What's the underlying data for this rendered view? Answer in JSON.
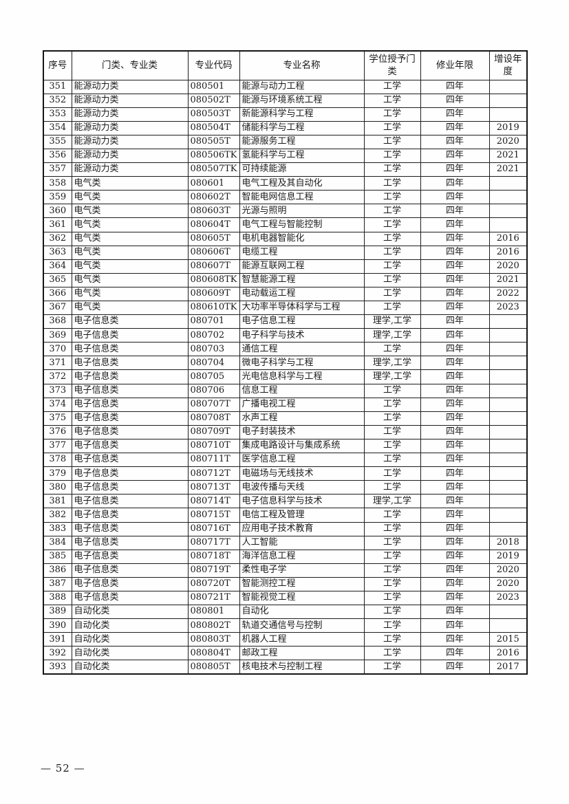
{
  "table": {
    "headers": [
      "序号",
      "门类、专业类",
      "专业代码",
      "专业名称",
      "学位授予门类",
      "修业年限",
      "增设年度"
    ],
    "rows": [
      [
        "351",
        "能源动力类",
        "080501",
        "能源与动力工程",
        "工学",
        "四年",
        ""
      ],
      [
        "352",
        "能源动力类",
        "080502T",
        "能源与环境系统工程",
        "工学",
        "四年",
        ""
      ],
      [
        "353",
        "能源动力类",
        "080503T",
        "新能源科学与工程",
        "工学",
        "四年",
        ""
      ],
      [
        "354",
        "能源动力类",
        "080504T",
        "储能科学与工程",
        "工学",
        "四年",
        "2019"
      ],
      [
        "355",
        "能源动力类",
        "080505T",
        "能源服务工程",
        "工学",
        "四年",
        "2020"
      ],
      [
        "356",
        "能源动力类",
        "080506TK",
        "氢能科学与工程",
        "工学",
        "四年",
        "2021"
      ],
      [
        "357",
        "能源动力类",
        "080507TK",
        "可持续能源",
        "工学",
        "四年",
        "2021"
      ],
      [
        "358",
        "电气类",
        "080601",
        "电气工程及其自动化",
        "工学",
        "四年",
        ""
      ],
      [
        "359",
        "电气类",
        "080602T",
        "智能电网信息工程",
        "工学",
        "四年",
        ""
      ],
      [
        "360",
        "电气类",
        "080603T",
        "光源与照明",
        "工学",
        "四年",
        ""
      ],
      [
        "361",
        "电气类",
        "080604T",
        "电气工程与智能控制",
        "工学",
        "四年",
        ""
      ],
      [
        "362",
        "电气类",
        "080605T",
        "电机电器智能化",
        "工学",
        "四年",
        "2016"
      ],
      [
        "363",
        "电气类",
        "080606T",
        "电缆工程",
        "工学",
        "四年",
        "2016"
      ],
      [
        "364",
        "电气类",
        "080607T",
        "能源互联网工程",
        "工学",
        "四年",
        "2020"
      ],
      [
        "365",
        "电气类",
        "080608TK",
        "智慧能源工程",
        "工学",
        "四年",
        "2021"
      ],
      [
        "366",
        "电气类",
        "080609T",
        "电动载运工程",
        "工学",
        "四年",
        "2022"
      ],
      [
        "367",
        "电气类",
        "080610TK",
        "大功率半导体科学与工程",
        "工学",
        "四年",
        "2023"
      ],
      [
        "368",
        "电子信息类",
        "080701",
        "电子信息工程",
        "理学,工学",
        "四年",
        ""
      ],
      [
        "369",
        "电子信息类",
        "080702",
        "电子科学与技术",
        "理学,工学",
        "四年",
        ""
      ],
      [
        "370",
        "电子信息类",
        "080703",
        "通信工程",
        "工学",
        "四年",
        ""
      ],
      [
        "371",
        "电子信息类",
        "080704",
        "微电子科学与工程",
        "理学,工学",
        "四年",
        ""
      ],
      [
        "372",
        "电子信息类",
        "080705",
        "光电信息科学与工程",
        "理学,工学",
        "四年",
        ""
      ],
      [
        "373",
        "电子信息类",
        "080706",
        "信息工程",
        "工学",
        "四年",
        ""
      ],
      [
        "374",
        "电子信息类",
        "080707T",
        "广播电视工程",
        "工学",
        "四年",
        ""
      ],
      [
        "375",
        "电子信息类",
        "080708T",
        "水声工程",
        "工学",
        "四年",
        ""
      ],
      [
        "376",
        "电子信息类",
        "080709T",
        "电子封装技术",
        "工学",
        "四年",
        ""
      ],
      [
        "377",
        "电子信息类",
        "080710T",
        "集成电路设计与集成系统",
        "工学",
        "四年",
        ""
      ],
      [
        "378",
        "电子信息类",
        "080711T",
        "医学信息工程",
        "工学",
        "四年",
        ""
      ],
      [
        "379",
        "电子信息类",
        "080712T",
        "电磁场与无线技术",
        "工学",
        "四年",
        ""
      ],
      [
        "380",
        "电子信息类",
        "080713T",
        "电波传播与天线",
        "工学",
        "四年",
        ""
      ],
      [
        "381",
        "电子信息类",
        "080714T",
        "电子信息科学与技术",
        "理学,工学",
        "四年",
        ""
      ],
      [
        "382",
        "电子信息类",
        "080715T",
        "电信工程及管理",
        "工学",
        "四年",
        ""
      ],
      [
        "383",
        "电子信息类",
        "080716T",
        "应用电子技术教育",
        "工学",
        "四年",
        ""
      ],
      [
        "384",
        "电子信息类",
        "080717T",
        "人工智能",
        "工学",
        "四年",
        "2018"
      ],
      [
        "385",
        "电子信息类",
        "080718T",
        "海洋信息工程",
        "工学",
        "四年",
        "2019"
      ],
      [
        "386",
        "电子信息类",
        "080719T",
        "柔性电子学",
        "工学",
        "四年",
        "2020"
      ],
      [
        "387",
        "电子信息类",
        "080720T",
        "智能测控工程",
        "工学",
        "四年",
        "2020"
      ],
      [
        "388",
        "电子信息类",
        "080721T",
        "智能视觉工程",
        "工学",
        "四年",
        "2023"
      ],
      [
        "389",
        "自动化类",
        "080801",
        "自动化",
        "工学",
        "四年",
        ""
      ],
      [
        "390",
        "自动化类",
        "080802T",
        "轨道交通信号与控制",
        "工学",
        "四年",
        ""
      ],
      [
        "391",
        "自动化类",
        "080803T",
        "机器人工程",
        "工学",
        "四年",
        "2015"
      ],
      [
        "392",
        "自动化类",
        "080804T",
        "邮政工程",
        "工学",
        "四年",
        "2016"
      ],
      [
        "393",
        "自动化类",
        "080805T",
        "核电技术与控制工程",
        "工学",
        "四年",
        "2017"
      ]
    ]
  },
  "footer": {
    "page_number": "— 52 —"
  }
}
